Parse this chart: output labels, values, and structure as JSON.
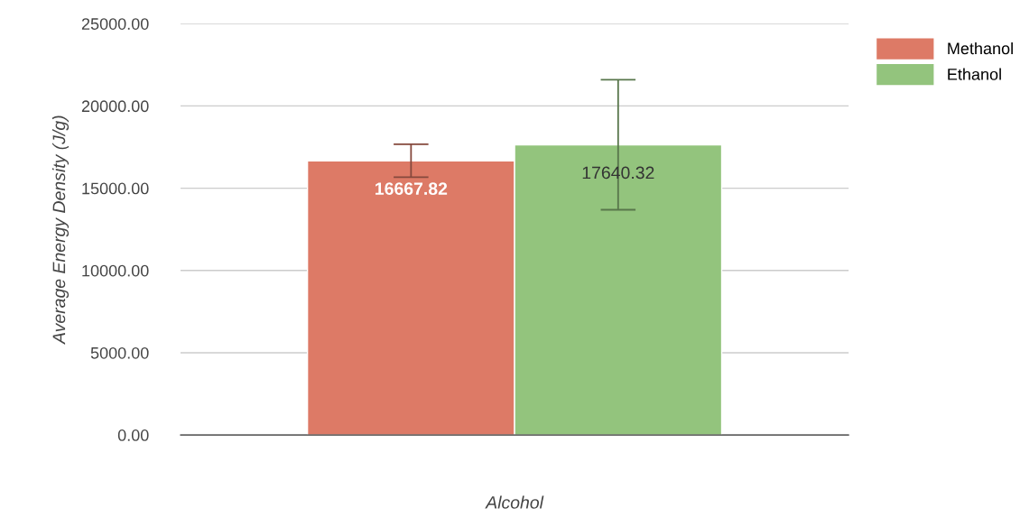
{
  "chart_data": {
    "type": "bar",
    "xlabel": "Alcohol",
    "ylabel": "Average Energy Density (J/g)",
    "categories": [
      null
    ],
    "series": [
      {
        "name": "Methanol",
        "color": "#dd7a66",
        "values": [
          16667.82
        ],
        "errors": [
          1000
        ]
      },
      {
        "name": "Ethanol",
        "color": "#93c47d",
        "values": [
          17640.32
        ],
        "errors": [
          3950
        ]
      }
    ],
    "ylim": [
      0,
      25000
    ],
    "yticks": [
      {
        "value": 0,
        "label": "0.00"
      },
      {
        "value": 5000,
        "label": "5000.00"
      },
      {
        "value": 10000,
        "label": "10000.00"
      },
      {
        "value": 15000,
        "label": "15000.00"
      },
      {
        "value": 20000,
        "label": "20000.00"
      },
      {
        "value": 25000,
        "label": "25000.00"
      }
    ],
    "grid": "y",
    "legend": "top right",
    "data_labels": true
  }
}
